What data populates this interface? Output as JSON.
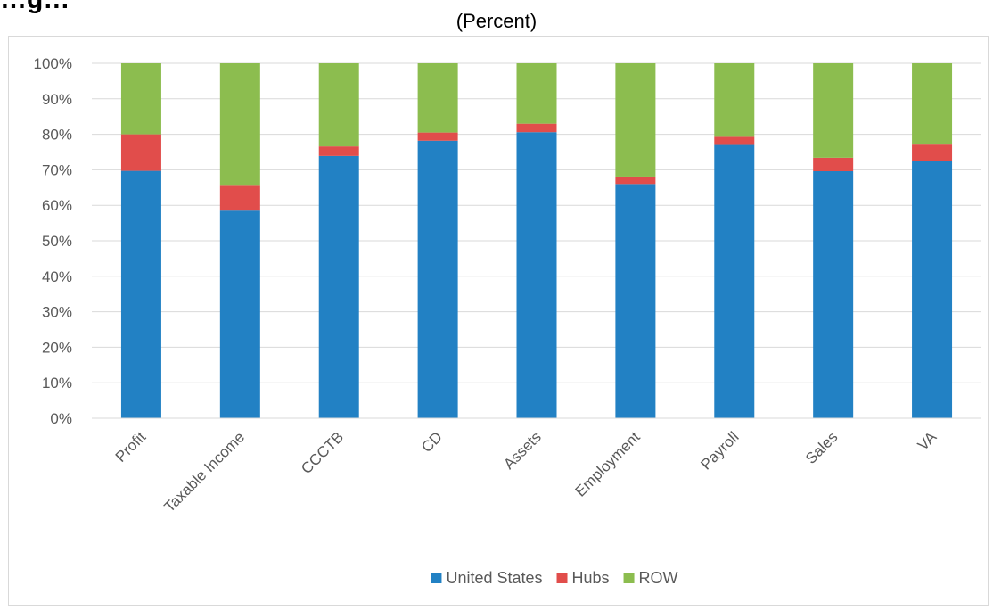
{
  "chart_data": {
    "type": "bar",
    "stacked": true,
    "title_partial": "…g…",
    "subtitle": "(Percent)",
    "categories": [
      "Profit",
      "Taxable Income",
      "CCCTB",
      "CD",
      "Assets",
      "Employment",
      "Payroll",
      "Sales",
      "VA"
    ],
    "series": [
      {
        "name": "United States",
        "color": "#2281c4",
        "values": [
          69.7,
          58.5,
          73.9,
          78.2,
          80.6,
          66.0,
          77.0,
          69.6,
          72.5
        ]
      },
      {
        "name": "Hubs",
        "color": "#e14d4b",
        "values": [
          10.3,
          7.0,
          2.7,
          2.3,
          2.4,
          2.1,
          2.3,
          3.8,
          4.6
        ]
      },
      {
        "name": "ROW",
        "color": "#8cbd4f",
        "values": [
          20.0,
          34.5,
          23.4,
          19.5,
          17.0,
          31.9,
          20.7,
          26.6,
          22.9
        ]
      }
    ],
    "ylim": [
      0,
      100
    ],
    "yticks": [
      "0%",
      "10%",
      "20%",
      "30%",
      "40%",
      "50%",
      "60%",
      "70%",
      "80%",
      "90%",
      "100%"
    ],
    "grid": true,
    "legend_position": "bottom"
  }
}
